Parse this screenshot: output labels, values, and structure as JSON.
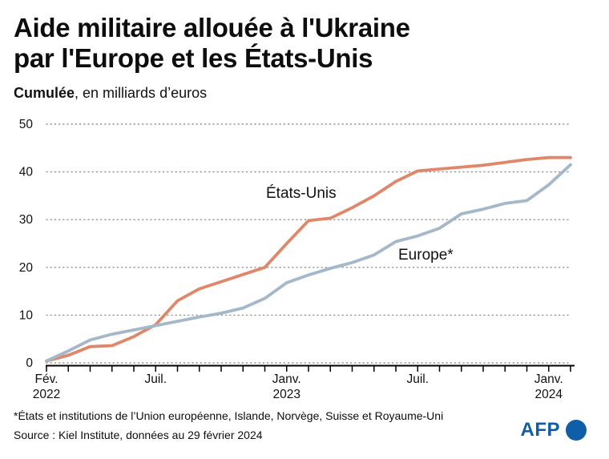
{
  "chart_data": {
    "type": "line",
    "title_line1": "Aide militaire allouée à l'Ukraine",
    "title_line2": "par l'Europe et les États-Unis",
    "subtitle_bold": "Cumulée",
    "subtitle_rest": ", en milliards d’euros",
    "ylim": [
      0,
      50
    ],
    "yticks": [
      0,
      10,
      20,
      30,
      40,
      50
    ],
    "grid": "horizontal-dotted",
    "legend": "inline-labels",
    "x_tick_count": 25,
    "x_tick_labels": [
      {
        "index": 0,
        "line1": "Fév.",
        "line2": "2022"
      },
      {
        "index": 5,
        "line1": "Juil.",
        "line2": ""
      },
      {
        "index": 11,
        "line1": "Janv.",
        "line2": "2023"
      },
      {
        "index": 17,
        "line1": "Juil.",
        "line2": ""
      },
      {
        "index": 23,
        "line1": "Janv.",
        "line2": "2024"
      }
    ],
    "series": [
      {
        "id": "etats-unis",
        "name": "États-Unis",
        "color": "#e0876a",
        "values": [
          0.4,
          1.6,
          3.4,
          3.6,
          5.5,
          8,
          13,
          15.5,
          17,
          18.5,
          20,
          25,
          29.8,
          30.3,
          32.5,
          35,
          38,
          40.2,
          40.6,
          41,
          41.4,
          42,
          42.6,
          43,
          43
        ]
      },
      {
        "id": "europe",
        "name": "Europe*",
        "color": "#a4b8ca",
        "values": [
          0.4,
          2.5,
          4.8,
          6,
          6.9,
          7.8,
          8.7,
          9.6,
          10.4,
          11.5,
          13.5,
          16.8,
          18.4,
          19.8,
          21,
          22.6,
          25.4,
          26.6,
          28.2,
          31.2,
          32.2,
          33.4,
          34,
          37.3,
          41.5
        ]
      }
    ]
  },
  "footer": {
    "footnote": "*États et institutions de l’Union européenne, Islande, Norvège, Suisse et Royaume-Uni",
    "source": "Source : Kiel Institute, données au 29 février 2024",
    "logo_text": "AFP",
    "logo_color": "#0e5fa8"
  }
}
